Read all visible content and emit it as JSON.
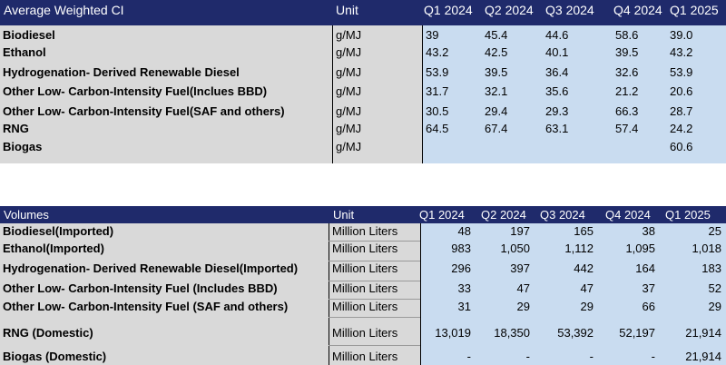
{
  "table1": {
    "header": {
      "name": "Average Weighted CI",
      "unit": "Unit",
      "cols": [
        "Q1 2024",
        "Q2 2024",
        "Q3 2024",
        "Q4 2024",
        "Q1 2025"
      ]
    },
    "rows": [
      {
        "label": "Biodiesel",
        "unit": "g/MJ",
        "values": [
          "39",
          "45.4",
          "44.6",
          "58.6",
          "39.0"
        ]
      },
      {
        "label": "Ethanol",
        "unit": "g/MJ",
        "values": [
          "43.2",
          "42.5",
          "40.1",
          "39.5",
          "43.2"
        ]
      },
      {
        "label": "Hydrogenation- Derived Renewable Diesel",
        "unit": "g/MJ",
        "values": [
          "53.9",
          "39.5",
          "36.4",
          "32.6",
          "53.9"
        ]
      },
      {
        "label": "Other Low- Carbon-Intensity Fuel(Inclues BBD)",
        "unit": "g/MJ",
        "values": [
          "31.7",
          "32.1",
          "35.6",
          "21.2",
          "20.6"
        ]
      },
      {
        "label": "Other Low- Carbon-Intensity Fuel(SAF and others)",
        "unit": "g/MJ",
        "values": [
          "30.5",
          "29.4",
          "29.3",
          "66.3",
          "28.7"
        ]
      },
      {
        "label": "RNG",
        "unit": "g/MJ",
        "values": [
          "64.5",
          "67.4",
          "63.1",
          "57.4",
          "24.2"
        ]
      },
      {
        "label": "Biogas",
        "unit": "g/MJ",
        "values": [
          "",
          "",
          "",
          "",
          "60.6"
        ]
      }
    ]
  },
  "table2": {
    "header": {
      "name": "Volumes",
      "unit": "Unit",
      "cols": [
        "Q1 2024",
        "Q2 2024",
        "Q3 2024",
        "Q4 2024",
        "Q1 2025"
      ]
    },
    "rows": [
      {
        "label": "Biodiesel(Imported)",
        "unit": "Million Liters",
        "values": [
          "48",
          "197",
          "165",
          "38",
          "25"
        ]
      },
      {
        "label": "Ethanol(Imported)",
        "unit": "Million Liters",
        "values": [
          "983",
          "1,050",
          "1,112",
          "1,095",
          "1,018"
        ]
      },
      {
        "label": "Hydrogenation- Derived Renewable Diesel(Imported)",
        "unit": "Million Liters",
        "values": [
          "296",
          "397",
          "442",
          "164",
          "183"
        ]
      },
      {
        "label": "Other Low- Carbon-Intensity Fuel (Includes BBD)",
        "unit": "Million Liters",
        "values": [
          "33",
          "47",
          "47",
          "37",
          "52"
        ]
      },
      {
        "label": "Other Low- Carbon-Intensity Fuel (SAF and others)",
        "unit": "Million Liters",
        "values": [
          "31",
          "29",
          "29",
          "66",
          "29"
        ]
      },
      {
        "label": "RNG (Domestic)",
        "unit": "Million Liters",
        "values": [
          "13,019",
          "18,350",
          "53,392",
          "52,197",
          "21,914"
        ]
      },
      {
        "label": "Biogas (Domestic)",
        "unit": "Million Liters",
        "values": [
          "-",
          "-",
          "-",
          "-",
          "21,914"
        ]
      }
    ]
  }
}
